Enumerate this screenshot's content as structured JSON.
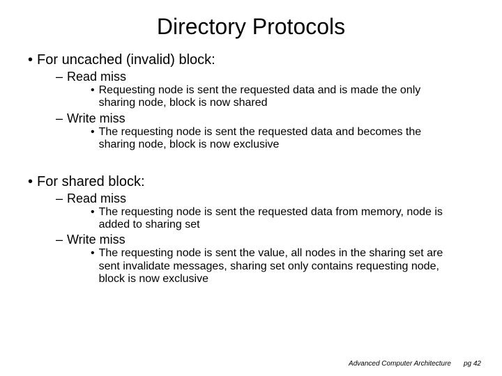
{
  "title": "Directory Protocols",
  "sections": [
    {
      "heading": "For uncached (invalid) block:",
      "items": [
        {
          "label": "Read miss",
          "detail": "Requesting node is sent the requested data and is made the only sharing node, block is now shared"
        },
        {
          "label": "Write miss",
          "detail": "The requesting node is sent the requested data and becomes the sharing node, block is now exclusive"
        }
      ]
    },
    {
      "heading": "For shared block:",
      "items": [
        {
          "label": "Read miss",
          "detail": "The requesting node is sent the requested data from memory, node is added to sharing set"
        },
        {
          "label": "Write miss",
          "detail": "The requesting node is sent the value, all nodes in the sharing set are sent invalidate messages, sharing set only contains requesting node, block is now exclusive"
        }
      ]
    }
  ],
  "footer": {
    "course": "Advanced Computer Architecture",
    "page": "pg 42"
  },
  "colors": {
    "background": "#ffffff",
    "text": "#000000"
  },
  "typography": {
    "title_fontsize": 32,
    "l1_fontsize": 20,
    "l2_fontsize": 18,
    "l3_fontsize": 16,
    "footer_fontsize": 10,
    "font_family": "Comic Sans MS"
  }
}
